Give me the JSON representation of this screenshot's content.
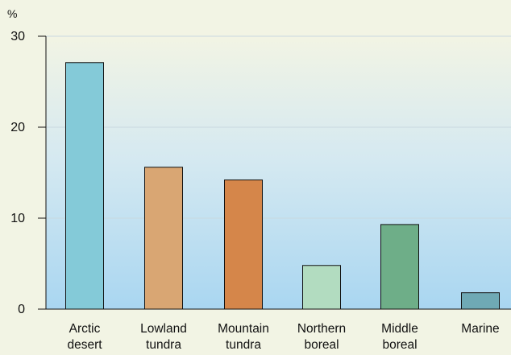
{
  "chart_data": {
    "type": "bar",
    "title": "",
    "xlabel": "",
    "ylabel": "%",
    "ylim": [
      0,
      30
    ],
    "yticks": [
      0,
      10,
      20,
      30
    ],
    "grid": true,
    "legend": "none",
    "categories": [
      [
        "Arctic",
        "desert"
      ],
      [
        "Lowland",
        "tundra"
      ],
      [
        "Mountain",
        "tundra"
      ],
      [
        "Northern",
        "boreal"
      ],
      [
        "Middle",
        "boreal"
      ],
      [
        "Marine"
      ]
    ],
    "values": [
      27.1,
      15.6,
      14.2,
      4.8,
      9.3,
      1.8
    ],
    "colors": [
      "#84cad8",
      "#d9a673",
      "#d5864a",
      "#b2dcc0",
      "#6eae88",
      "#6fa9b5"
    ],
    "background_gradient": [
      "#f2f4e4",
      "#d5e9f1",
      "#a9d6f1"
    ]
  }
}
